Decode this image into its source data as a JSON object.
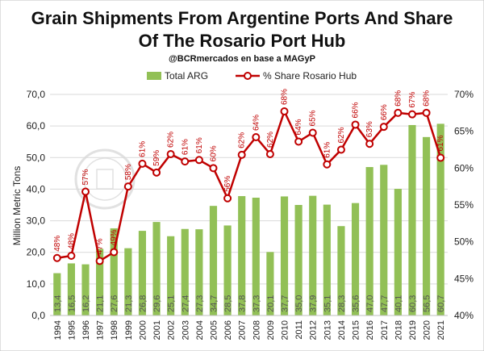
{
  "chart_data": {
    "type": "bar",
    "title_line1": "Grain Shipments From Argentine Ports And Share",
    "title_line2": "Of The Rosario Port Hub",
    "subtitle": "@BCRmercados en base a MAGyP",
    "ylabel": "Million Metric Tons",
    "ylim": [
      0,
      70
    ],
    "y2lim": [
      40,
      70
    ],
    "yticks": [
      "0,0",
      "10,0",
      "20,0",
      "30,0",
      "40,0",
      "50,0",
      "60,0",
      "70,0"
    ],
    "y2ticks": [
      "40%",
      "45%",
      "50%",
      "55%",
      "60%",
      "65%",
      "70%"
    ],
    "grid": true,
    "legend_position": "top",
    "categories": [
      "1994",
      "1995",
      "1996",
      "1997",
      "1998",
      "1999",
      "2000",
      "2001",
      "2002",
      "2003",
      "2004",
      "2005",
      "2006",
      "2007",
      "2008",
      "2009",
      "2010",
      "2011",
      "2012",
      "2013",
      "2014",
      "2015",
      "2016",
      "2017",
      "2018",
      "2019",
      "2020",
      "2021"
    ],
    "series": [
      {
        "name": "Total ARG",
        "type": "bar",
        "color": "#92c056",
        "values": [
          13.4,
          16.5,
          16.2,
          21.1,
          27.6,
          21.3,
          26.8,
          29.6,
          25.1,
          27.4,
          27.3,
          34.7,
          28.5,
          37.8,
          37.3,
          20.1,
          37.7,
          35.0,
          37.9,
          35.1,
          28.3,
          35.6,
          47.0,
          47.7,
          40.1,
          60.3,
          56.5,
          60.7
        ],
        "value_labels": [
          "13,4",
          "16,5",
          "16,2",
          "21,1",
          "27,6",
          "21,3",
          "26,8",
          "29,6",
          "25,1",
          "27,4",
          "27,3",
          "34,7",
          "28,5",
          "37,8",
          "37,3",
          "20,1",
          "37,7",
          "35,0",
          "37,9",
          "35,1",
          "28,3",
          "35,6",
          "47,0",
          "47,7",
          "40,1",
          "60,3",
          "56,5",
          "60,7"
        ]
      },
      {
        "name": "% Share Rosario Hub",
        "type": "line",
        "color": "#c00000",
        "values": [
          47.8,
          48.1,
          56.8,
          47.4,
          48.6,
          57.5,
          60.6,
          59.4,
          61.9,
          60.9,
          61.1,
          60.0,
          55.9,
          61.8,
          64.2,
          61.9,
          67.7,
          63.6,
          64.8,
          60.5,
          62.5,
          65.9,
          63.3,
          65.6,
          67.5,
          67.3,
          67.5,
          61.4
        ],
        "value_labels": [
          "48%",
          "48%",
          "57%",
          "47%",
          "49%",
          "58%",
          "61%",
          "59%",
          "62%",
          "61%",
          "61%",
          "60%",
          "56%",
          "62%",
          "64%",
          "62%",
          "68%",
          "64%",
          "65%",
          "61%",
          "62%",
          "66%",
          "63%",
          "66%",
          "68%",
          "67%",
          "68%",
          "61%"
        ]
      }
    ]
  }
}
